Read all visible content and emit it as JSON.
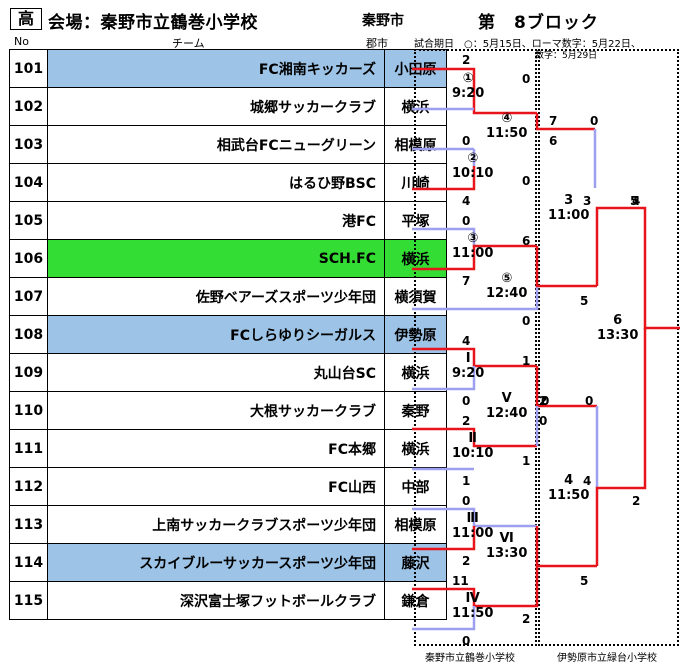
{
  "header": {
    "level_badge": "高",
    "venue": "会場：秦野市立鶴巻小学校",
    "city": "秦野市",
    "block": "第　8ブロック",
    "col_no": "No",
    "col_team": "チーム",
    "col_city": "郡市",
    "dates_line1": "試合期日　○：5月15日、ローマ数字：5月22日、",
    "dates_line2": "数字：5月29日"
  },
  "teams": [
    {
      "no": "101",
      "name": "FC湘南キッカーズ",
      "city": "小田原",
      "highlight": "blue"
    },
    {
      "no": "102",
      "name": "城郷サッカークラブ",
      "city": "横浜",
      "highlight": ""
    },
    {
      "no": "103",
      "name": "相武台FCニューグリーン",
      "city": "相模原",
      "highlight": ""
    },
    {
      "no": "104",
      "name": "はるひ野BSC",
      "city": "川崎",
      "highlight": ""
    },
    {
      "no": "105",
      "name": "港FC",
      "city": "平塚",
      "highlight": ""
    },
    {
      "no": "106",
      "name": "SCH.FC",
      "city": "横浜",
      "highlight": "green"
    },
    {
      "no": "107",
      "name": "佐野ベアーズスポーツ少年団",
      "city": "横須賀",
      "highlight": ""
    },
    {
      "no": "108",
      "name": "FCしらゆりシーガルス",
      "city": "伊勢原",
      "highlight": "blue"
    },
    {
      "no": "109",
      "name": "丸山台SC",
      "city": "横浜",
      "highlight": ""
    },
    {
      "no": "110",
      "name": "大根サッカークラブ",
      "city": "秦野",
      "highlight": ""
    },
    {
      "no": "111",
      "name": "FC本郷",
      "city": "横浜",
      "highlight": ""
    },
    {
      "no": "112",
      "name": "FC山西",
      "city": "中部",
      "highlight": ""
    },
    {
      "no": "113",
      "name": "上南サッカークラブスポーツ少年団",
      "city": "相模原",
      "highlight": ""
    },
    {
      "no": "114",
      "name": "スカイブルーサッカースポーツ少年団",
      "city": "藤沢",
      "highlight": "blue"
    },
    {
      "no": "115",
      "name": "深沢富士塚フットボールクラブ",
      "city": "鎌倉",
      "highlight": ""
    }
  ],
  "matches": [
    {
      "label": "①",
      "time": "9:20"
    },
    {
      "label": "②",
      "time": "10:10"
    },
    {
      "label": "③",
      "time": "11:00"
    },
    {
      "label": "④",
      "time": "11:50"
    },
    {
      "label": "⑤",
      "time": "12:40"
    },
    {
      "label": "Ⅰ",
      "time": "9:20"
    },
    {
      "label": "Ⅱ",
      "time": "10:10"
    },
    {
      "label": "Ⅲ",
      "time": "11:00"
    },
    {
      "label": "Ⅳ",
      "time": "11:50"
    },
    {
      "label": "Ⅴ",
      "time": "12:40"
    },
    {
      "label": "Ⅵ",
      "time": "13:30"
    },
    {
      "label": "3",
      "time": "11:00"
    },
    {
      "label": "4",
      "time": "11:50"
    },
    {
      "label": "6",
      "time": "13:30"
    }
  ],
  "scores": [
    "2",
    "0",
    "0",
    "0",
    "0",
    "4",
    "0",
    "6",
    "7",
    "5",
    "0",
    "4",
    "1",
    "0",
    "2",
    "0",
    "1",
    "1",
    "0",
    "2",
    "11",
    "0",
    "2",
    "7",
    "0",
    "6",
    "3",
    "5",
    "0",
    "2",
    "4",
    "5",
    "4",
    "2"
  ],
  "footer": {
    "venue1": "秦野市立鶴巻小学校",
    "venue2": "伊勢原市立緑台小学校"
  },
  "colors": {
    "winner_line": "#e8141c",
    "loser_line": "#9f9ff0",
    "blue_row": "#9dc3e6",
    "green_row": "#33dd33"
  }
}
